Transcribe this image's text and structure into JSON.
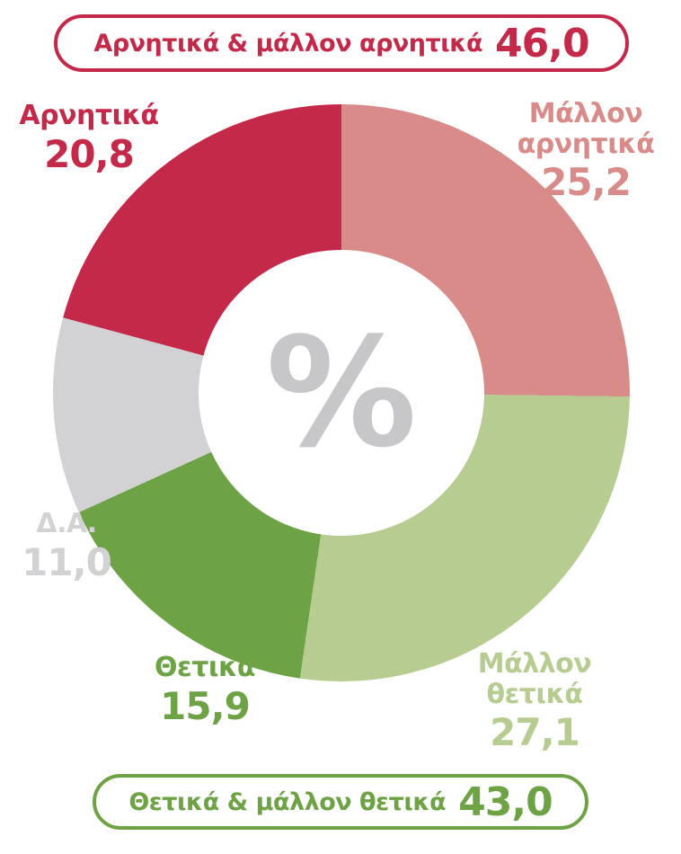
{
  "chart_data": {
    "type": "pie",
    "variant": "donut",
    "title": "",
    "units": "percent",
    "center_label": "%",
    "center_label_color": "#c7c7ca",
    "hole_ratio": 0.49,
    "start_angle_deg": 0,
    "direction": "clockwise",
    "slices": [
      {
        "name": "Μάλλον αρνητικά",
        "label": "Μάλλον\nαρνητικά",
        "value": 25.2,
        "display": "25,2",
        "color": "#d88b88"
      },
      {
        "name": "Μάλλον θετικά",
        "label": "Μάλλον\nθετικά",
        "value": 27.1,
        "display": "27,1",
        "color": "#b7cc91"
      },
      {
        "name": "Θετικά",
        "label": "Θετικά",
        "value": 15.9,
        "display": "15,9",
        "color": "#6ea345"
      },
      {
        "name": "Δ.Α.",
        "label": "Δ.Α.",
        "value": 11.0,
        "display": "11,0",
        "color": "#d2d2d5"
      },
      {
        "name": "Αρνητικά",
        "label": "Αρνητικά",
        "value": 20.8,
        "display": "20,8",
        "color": "#c5294a"
      }
    ],
    "totals": {
      "negative": {
        "label": "Αρνητικά & μάλλον αρνητικά",
        "value": 46.0,
        "display": "46,0",
        "color": "#c5294a"
      },
      "positive": {
        "label": "Θετικά & μάλλον θετικά",
        "value": 43.0,
        "display": "43,0",
        "color": "#6ea345"
      }
    }
  }
}
